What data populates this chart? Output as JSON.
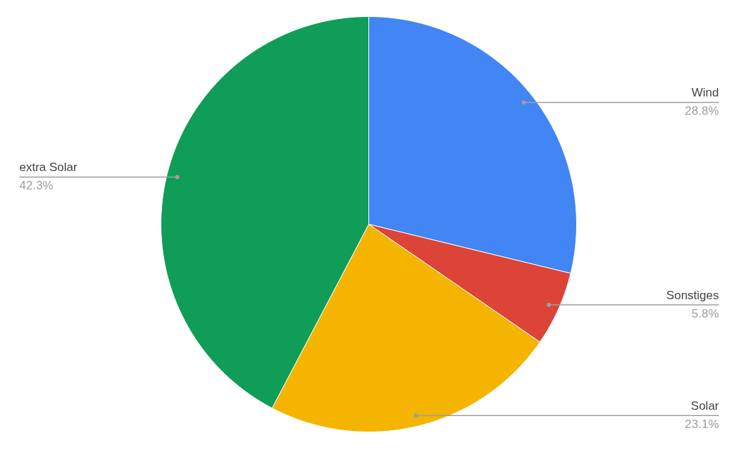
{
  "chart_data": {
    "type": "pie",
    "categories": [
      "Wind",
      "Sonstiges",
      "Solar",
      "extra Solar"
    ],
    "values": [
      28.8,
      5.8,
      23.1,
      42.3
    ],
    "colors": [
      "#4285f4",
      "#db4437",
      "#f4b400",
      "#0f9d58"
    ],
    "value_labels": [
      "28.8%",
      "5.8%",
      "23.1%",
      "42.3%"
    ]
  }
}
